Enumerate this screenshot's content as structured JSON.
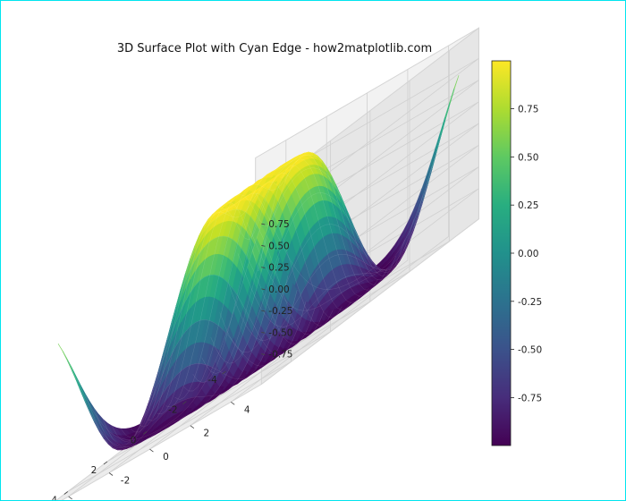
{
  "chart_data": {
    "type": "surface3d",
    "title": "3D Surface Plot with Cyan Edge - how2matplotlib.com",
    "function": "z = sin(sqrt(x^2 + y^2))",
    "x_range": [
      -5,
      5
    ],
    "y_range": [
      -5,
      5
    ],
    "z_range": [
      -1,
      1
    ],
    "x_ticks": [
      "-4",
      "-2",
      "0",
      "2",
      "4"
    ],
    "y_ticks": [
      "-4",
      "-2",
      "0",
      "2",
      "4"
    ],
    "z_ticks": [
      "-0.75",
      "-0.50",
      "-0.25",
      "0.00",
      "0.25",
      "0.50",
      "0.75"
    ],
    "colorbar": {
      "colormap": "viridis",
      "range": [
        -0.999,
        0.999
      ],
      "ticks": [
        "0.75",
        "0.50",
        "0.25",
        "0.00",
        "-0.25",
        "-0.50",
        "-0.75"
      ]
    },
    "edge_color": "cyan",
    "frame_color": "#00e5ee",
    "grid": true
  }
}
